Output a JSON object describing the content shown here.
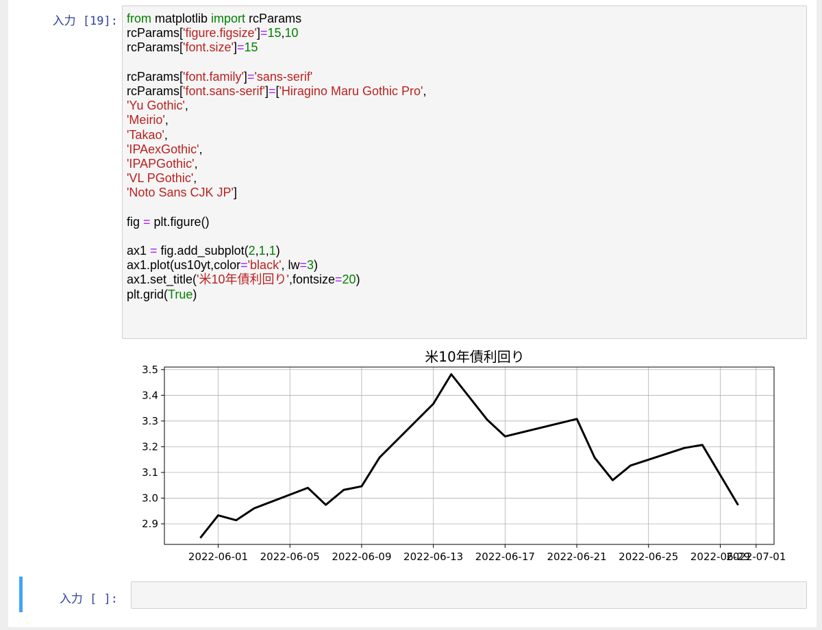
{
  "cell1": {
    "prompt": "入力 [19]:",
    "code_lines": [
      [
        {
          "t": "from",
          "c": "kw"
        },
        {
          "t": " matplotlib ",
          "c": ""
        },
        {
          "t": "import",
          "c": "kw"
        },
        {
          "t": " rcParams",
          "c": ""
        }
      ],
      [
        {
          "t": "rcParams[",
          "c": ""
        },
        {
          "t": "'figure.figsize'",
          "c": "str"
        },
        {
          "t": "]",
          "c": ""
        },
        {
          "t": "=",
          "c": "op"
        },
        {
          "t": "15",
          "c": "num"
        },
        {
          "t": ",",
          "c": ""
        },
        {
          "t": "10",
          "c": "num"
        }
      ],
      [
        {
          "t": "rcParams[",
          "c": ""
        },
        {
          "t": "'font.size'",
          "c": "str"
        },
        {
          "t": "]",
          "c": ""
        },
        {
          "t": "=",
          "c": "op"
        },
        {
          "t": "15",
          "c": "num"
        }
      ],
      [],
      [
        {
          "t": "rcParams[",
          "c": ""
        },
        {
          "t": "'font.family'",
          "c": "str"
        },
        {
          "t": "]",
          "c": ""
        },
        {
          "t": "=",
          "c": "op"
        },
        {
          "t": "'sans-serif'",
          "c": "str"
        }
      ],
      [
        {
          "t": "rcParams[",
          "c": ""
        },
        {
          "t": "'font.sans-serif'",
          "c": "str"
        },
        {
          "t": "]",
          "c": ""
        },
        {
          "t": "=",
          "c": "op"
        },
        {
          "t": "[",
          "c": ""
        },
        {
          "t": "'Hiragino Maru Gothic Pro'",
          "c": "str"
        },
        {
          "t": ",",
          "c": ""
        }
      ],
      [
        {
          "t": "'Yu Gothic'",
          "c": "str"
        },
        {
          "t": ",",
          "c": ""
        }
      ],
      [
        {
          "t": "'Meirio'",
          "c": "str"
        },
        {
          "t": ",",
          "c": ""
        }
      ],
      [
        {
          "t": "'Takao'",
          "c": "str"
        },
        {
          "t": ",",
          "c": ""
        }
      ],
      [
        {
          "t": "'IPAexGothic'",
          "c": "str"
        },
        {
          "t": ",",
          "c": ""
        }
      ],
      [
        {
          "t": "'IPAPGothic'",
          "c": "str"
        },
        {
          "t": ",",
          "c": ""
        }
      ],
      [
        {
          "t": "'VL PGothic'",
          "c": "str"
        },
        {
          "t": ",",
          "c": ""
        }
      ],
      [
        {
          "t": "'Noto Sans CJK JP'",
          "c": "str"
        },
        {
          "t": "]",
          "c": ""
        }
      ],
      [],
      [
        {
          "t": "fig ",
          "c": ""
        },
        {
          "t": "=",
          "c": "op"
        },
        {
          "t": " plt.figure()",
          "c": ""
        }
      ],
      [],
      [
        {
          "t": "ax1 ",
          "c": ""
        },
        {
          "t": "=",
          "c": "op"
        },
        {
          "t": " fig.add_subplot(",
          "c": ""
        },
        {
          "t": "2",
          "c": "num"
        },
        {
          "t": ",",
          "c": ""
        },
        {
          "t": "1",
          "c": "num"
        },
        {
          "t": ",",
          "c": ""
        },
        {
          "t": "1",
          "c": "num"
        },
        {
          "t": ")",
          "c": ""
        }
      ],
      [
        {
          "t": "ax1.plot(us10yt,color",
          "c": ""
        },
        {
          "t": "=",
          "c": "op"
        },
        {
          "t": "'black'",
          "c": "str"
        },
        {
          "t": ", lw",
          "c": ""
        },
        {
          "t": "=",
          "c": "op"
        },
        {
          "t": "3",
          "c": "num"
        },
        {
          "t": ")",
          "c": ""
        }
      ],
      [
        {
          "t": "ax1.set_title(",
          "c": ""
        },
        {
          "t": "'米10年債利回り'",
          "c": "str"
        },
        {
          "t": ",fontsize",
          "c": ""
        },
        {
          "t": "=",
          "c": "op"
        },
        {
          "t": "20",
          "c": "num"
        },
        {
          "t": ")",
          "c": ""
        }
      ],
      [
        {
          "t": "plt.grid(",
          "c": ""
        },
        {
          "t": "True",
          "c": "kw"
        },
        {
          "t": ")",
          "c": ""
        }
      ]
    ]
  },
  "cell2": {
    "prompt": "入力 [ ]:"
  },
  "chart_data": {
    "type": "line",
    "title": "米10年債利回り",
    "xlabel": "",
    "ylabel": "",
    "grid": true,
    "xlim": [
      "2022-05-29",
      "2022-07-02"
    ],
    "ylim": [
      2.82,
      3.51
    ],
    "x_ticks": [
      "2022-06-01",
      "2022-06-05",
      "2022-06-09",
      "2022-06-13",
      "2022-06-17",
      "2022-06-21",
      "2022-06-25",
      "2022-06-29",
      "2022-07-01"
    ],
    "x_tick_labels": [
      "2022-06-01",
      "2022-06-05",
      "2022-06-09",
      "2022-06-13",
      "2022-06-17",
      "2022-06-21",
      "2022-06-25",
      "2022-06-29",
      "2022-07-01"
    ],
    "y_ticks": [
      2.9,
      3.0,
      3.1,
      3.2,
      3.3,
      3.4,
      3.5
    ],
    "y_tick_labels": [
      "2.9",
      "3.0",
      "3.1",
      "3.2",
      "3.3",
      "3.4",
      "3.5"
    ],
    "series": [
      {
        "color": "#000000",
        "x": [
          "2022-05-31",
          "2022-06-01",
          "2022-06-02",
          "2022-06-03",
          "2022-06-06",
          "2022-06-07",
          "2022-06-08",
          "2022-06-09",
          "2022-06-10",
          "2022-06-13",
          "2022-06-14",
          "2022-06-16",
          "2022-06-17",
          "2022-06-21",
          "2022-06-22",
          "2022-06-23",
          "2022-06-24",
          "2022-06-27",
          "2022-06-28",
          "2022-06-30"
        ],
        "y": [
          2.845,
          2.933,
          2.914,
          2.96,
          3.04,
          2.974,
          3.032,
          3.046,
          3.158,
          3.367,
          3.482,
          3.305,
          3.24,
          3.308,
          3.157,
          3.07,
          3.127,
          3.195,
          3.207,
          2.973
        ]
      }
    ]
  }
}
